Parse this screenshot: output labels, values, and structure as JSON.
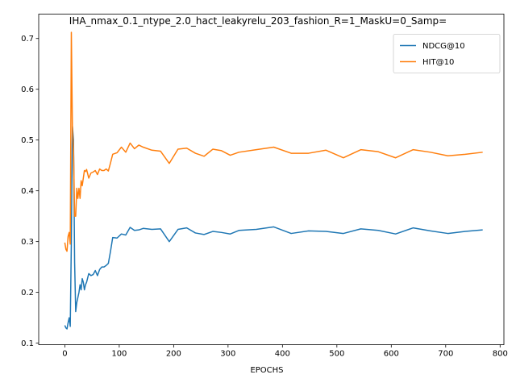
{
  "chart_data": {
    "type": "line",
    "title": "IHA_nmax_0.1_ntype_2.0_hact_leakyrelu_203_fashion_R=1_MaskU=0_Samp=",
    "xlabel": "EPOCHS",
    "ylabel": "",
    "xlim": [
      -48,
      807
    ],
    "ylim": [
      0.097,
      0.748
    ],
    "xticks": [
      0,
      100,
      200,
      300,
      400,
      500,
      600,
      700,
      800
    ],
    "yticks": [
      0.1,
      0.2,
      0.3,
      0.4,
      0.5,
      0.6,
      0.7
    ],
    "grid": false,
    "legend": "top-right",
    "series": [
      {
        "name": "NDCG@10",
        "color": "#1f77b4",
        "x": [
          0,
          2,
          4,
          6,
          8,
          10,
          12,
          14,
          16,
          18,
          20,
          22,
          24,
          26,
          28,
          30,
          32,
          34,
          36,
          38,
          40,
          44,
          48,
          52,
          56,
          60,
          64,
          68,
          72,
          76,
          80,
          84,
          88,
          96,
          104,
          112,
          120,
          128,
          136,
          144,
          160,
          176,
          192,
          208,
          224,
          240,
          256,
          272,
          288,
          304,
          320,
          352,
          384,
          416,
          448,
          480,
          512,
          544,
          576,
          608,
          640,
          672,
          704,
          736,
          768
        ],
        "y": [
          0.135,
          0.13,
          0.128,
          0.14,
          0.15,
          0.133,
          0.3,
          0.527,
          0.5,
          0.26,
          0.162,
          0.18,
          0.19,
          0.2,
          0.215,
          0.205,
          0.227,
          0.22,
          0.205,
          0.215,
          0.22,
          0.237,
          0.233,
          0.235,
          0.243,
          0.233,
          0.245,
          0.25,
          0.25,
          0.253,
          0.257,
          0.281,
          0.308,
          0.307,
          0.315,
          0.313,
          0.328,
          0.322,
          0.323,
          0.326,
          0.324,
          0.325,
          0.3,
          0.324,
          0.327,
          0.317,
          0.314,
          0.32,
          0.318,
          0.315,
          0.322,
          0.324,
          0.329,
          0.316,
          0.321,
          0.32,
          0.316,
          0.325,
          0.322,
          0.315,
          0.327,
          0.321,
          0.316,
          0.32,
          0.323
        ]
      },
      {
        "name": "HIT@10",
        "color": "#ff7f0e",
        "x": [
          0,
          2,
          4,
          6,
          8,
          10,
          12,
          14,
          16,
          18,
          20,
          22,
          24,
          26,
          28,
          30,
          32,
          34,
          36,
          38,
          40,
          44,
          48,
          52,
          56,
          60,
          64,
          68,
          72,
          76,
          80,
          84,
          88,
          96,
          104,
          112,
          120,
          128,
          136,
          144,
          160,
          176,
          192,
          208,
          224,
          240,
          256,
          272,
          288,
          304,
          320,
          352,
          384,
          416,
          448,
          480,
          512,
          544,
          576,
          608,
          640,
          672,
          704,
          736,
          768
        ],
        "y": [
          0.298,
          0.285,
          0.281,
          0.31,
          0.318,
          0.295,
          0.712,
          0.52,
          0.48,
          0.35,
          0.35,
          0.405,
          0.385,
          0.405,
          0.385,
          0.42,
          0.41,
          0.425,
          0.44,
          0.438,
          0.442,
          0.425,
          0.435,
          0.437,
          0.44,
          0.432,
          0.443,
          0.44,
          0.44,
          0.443,
          0.439,
          0.455,
          0.472,
          0.475,
          0.486,
          0.476,
          0.494,
          0.483,
          0.49,
          0.486,
          0.48,
          0.478,
          0.454,
          0.482,
          0.484,
          0.474,
          0.468,
          0.482,
          0.479,
          0.47,
          0.476,
          0.481,
          0.486,
          0.474,
          0.474,
          0.48,
          0.465,
          0.481,
          0.477,
          0.465,
          0.481,
          0.476,
          0.469,
          0.472,
          0.476
        ]
      }
    ]
  }
}
